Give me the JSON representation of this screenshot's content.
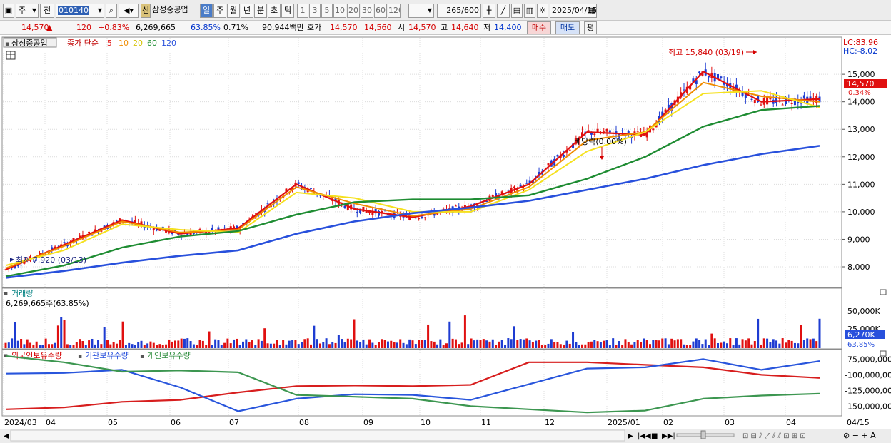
{
  "toolbar": {
    "market": "주",
    "scope": "전",
    "code": "010140",
    "badge": "신",
    "stock_name": "삼성중공업",
    "periods": [
      "일",
      "주",
      "월",
      "년",
      "분",
      "초",
      "틱"
    ],
    "active_period": "일",
    "intervals": [
      "1",
      "3",
      "5",
      "10",
      "20",
      "30",
      "60",
      "120"
    ],
    "count": "265",
    "count_max": "/600",
    "date": "2025/04/15"
  },
  "quote": {
    "price": "14,570",
    "change_arrow": "▲",
    "change": "120",
    "change_pct": "+0.83%",
    "volume": "6,269,665",
    "vol_ratio": "63.85%",
    "turnover": "0.71%",
    "amount": "90,944백만",
    "hoga_label": "호가",
    "ask": "14,570",
    "bid": "14,560",
    "open_label": "시",
    "open": "14,570",
    "high_label": "고",
    "high": "14,640",
    "low_label": "저",
    "low": "14,400",
    "buy": "매수",
    "sell": "매도",
    "eval": "평"
  },
  "price_panel": {
    "stock_tag": "삼성중공업",
    "ma_title": "종가 단순",
    "ma_periods": [
      "5",
      "10",
      "20",
      "60",
      "120"
    ],
    "lc": "LC:83.96",
    "hc": "HC:-8.02",
    "current_price_tag": "14,570",
    "current_pct_tag": "0.34%",
    "high_annotation": "최고 15,840 (03/19)",
    "low_annotation": "최저 7,920 (03/13)",
    "dividend_annotation": "배당락(0.00%)",
    "y_ticks": [
      "15,000",
      "14,000",
      "13,000",
      "12,000",
      "11,000",
      "10,000",
      "9,000",
      "8,000"
    ]
  },
  "volume_panel": {
    "title": "거래량",
    "value": "6,269,665주(63.85%)",
    "y_ticks": [
      "50,000K",
      "25,000K"
    ],
    "current_tag": "6,270K",
    "current_pct": "63.85%"
  },
  "holdings_panel": {
    "series": [
      "외국인보유수량",
      "기관보유수량",
      "개인보유수량"
    ],
    "y_ticks": [
      "-75,000,000",
      "-100,000,000",
      "-125,000,000",
      "-150,000,000"
    ]
  },
  "x_axis": {
    "labels": [
      "2024/03",
      "04",
      "05",
      "06",
      "07",
      "08",
      "09",
      "10",
      "11",
      "12",
      "2025/01",
      "02",
      "03",
      "04"
    ],
    "end_label": "04/15"
  },
  "colors": {
    "ma5": "#e01010",
    "ma10": "#f08c00",
    "ma20": "#f5e11e",
    "ma60": "#1e8c32",
    "ma120": "#2850dc",
    "foreign": "#d71e1e",
    "institution": "#2855dc",
    "individual": "#3c9650",
    "up": "#e01010",
    "down": "#1e3cd2"
  },
  "chart_data": {
    "type": "line",
    "title": "삼성중공업 종가 단순",
    "x": [
      "2024/03",
      "04",
      "05",
      "06",
      "07",
      "08",
      "09",
      "10",
      "11",
      "12",
      "2025/01",
      "02",
      "03",
      "04",
      "04/15"
    ],
    "series": [
      {
        "name": "5",
        "values": [
          7900,
          8800,
          9700,
          9200,
          9400,
          11000,
          10100,
          9800,
          10200,
          11000,
          12900,
          12800,
          15100,
          14000,
          14100
        ]
      },
      {
        "name": "10",
        "values": [
          7950,
          8750,
          9650,
          9250,
          9350,
          10900,
          10300,
          9850,
          10100,
          10900,
          12600,
          12900,
          14700,
          14200,
          14000
        ]
      },
      {
        "name": "20",
        "values": [
          8050,
          8600,
          9550,
          9350,
          9250,
          10700,
          10500,
          10000,
          10000,
          10800,
          12200,
          12900,
          14300,
          14400,
          13800
        ]
      },
      {
        "name": "60",
        "values": [
          7650,
          8050,
          8700,
          9100,
          9300,
          9900,
          10350,
          10450,
          10450,
          10600,
          11200,
          12000,
          13100,
          13700,
          13850
        ]
      },
      {
        "name": "120",
        "values": [
          7600,
          7850,
          8150,
          8400,
          8600,
          9200,
          9650,
          9950,
          10150,
          10400,
          10800,
          11200,
          11700,
          12100,
          12400
        ]
      }
    ],
    "highest": {
      "label": "최고",
      "value": 15840,
      "date": "03/19"
    },
    "lowest": {
      "label": "최저",
      "value": 7920,
      "date": "03/13"
    },
    "ylim": [
      7300,
      16300
    ],
    "holdings": {
      "ylim": [
        -162000000,
        -62000000
      ],
      "series": [
        {
          "name": "외국인보유수량",
          "values": [
            -155000000,
            -152000000,
            -143000000,
            -140000000,
            -128000000,
            -118000000,
            -117000000,
            -118000000,
            -116000000,
            -80000000,
            -80000000,
            -84000000,
            -88000000,
            -100000000,
            -105000000
          ]
        },
        {
          "name": "기관보유수량",
          "values": [
            -98000000,
            -97000000,
            -92000000,
            -120000000,
            -158000000,
            -138000000,
            -131000000,
            -132000000,
            -140000000,
            -115000000,
            -90000000,
            -88000000,
            -75000000,
            -92000000,
            -78000000
          ]
        },
        {
          "name": "개인보유수량",
          "values": [
            -70000000,
            -80000000,
            -95000000,
            -93000000,
            -96000000,
            -132000000,
            -135000000,
            -138000000,
            -150000000,
            -155000000,
            -160000000,
            -157000000,
            -138000000,
            -133000000,
            -130000000
          ]
        }
      ]
    }
  }
}
